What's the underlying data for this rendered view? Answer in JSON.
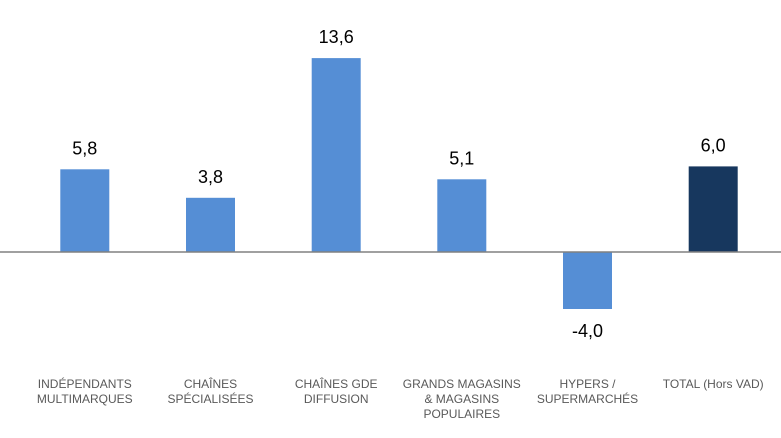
{
  "chart_data": {
    "type": "bar",
    "categories": [
      [
        "INDÉPENDANTS",
        "MULTIMARQUES"
      ],
      [
        "CHAÎNES",
        "SPÉCIALISÉES"
      ],
      [
        "CHAÎNES GDE",
        "DIFFUSION"
      ],
      [
        "GRANDS MAGASINS",
        "& MAGASINS",
        "POPULAIRES"
      ],
      [
        "HYPERS /",
        "SUPERMARCHÉS"
      ],
      [
        "TOTAL (Hors VAD)"
      ]
    ],
    "values": [
      5.8,
      3.8,
      13.6,
      5.1,
      -4.0,
      6.0
    ],
    "value_labels": [
      "5,8",
      "3,8",
      "13,6",
      "5,1",
      "-4,0",
      "6,0"
    ],
    "title": "",
    "xlabel": "",
    "ylabel": "",
    "ylim": [
      -4.0,
      13.6
    ],
    "grid": false,
    "legend": "none",
    "colors": {
      "bar": "#558ED5",
      "total_bar": "#17375E",
      "axis": "#808080"
    }
  }
}
